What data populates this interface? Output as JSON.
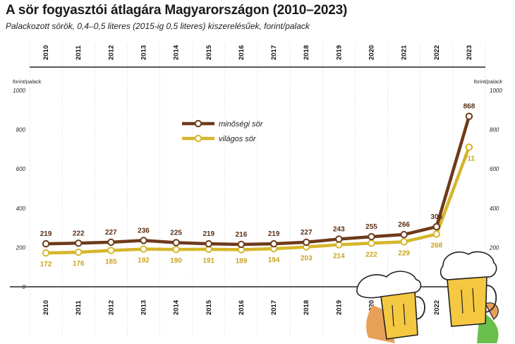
{
  "header": {
    "title": "A sör fogyasztói átlagára Magyarországon (2010–2023)",
    "subtitle": "Palackozott sörök, 0,4–0,5 literes (2015-ig 0,5 literes) kiszerelésűek, forint/palack"
  },
  "colors": {
    "premium": "#6e3a1b",
    "light": "#d6b62c",
    "axis": "#222222"
  },
  "chart_data": {
    "type": "line",
    "title": "A sör fogyasztói átlagára Magyarországon (2010–2023)",
    "subtitle": "Palackozott sörök, 0,4–0,5 literes (2015-ig 0,5 literes) kiszerelésűek, forint/palack",
    "ylabel": "forint/palack",
    "ylim": [
      0,
      1000
    ],
    "yticks": [
      0,
      200,
      400,
      600,
      800,
      1000
    ],
    "x": [
      "2010",
      "2011",
      "2012",
      "2013",
      "2014",
      "2015",
      "2016",
      "2017",
      "2018",
      "2019",
      "2020",
      "2021",
      "2022",
      "2023"
    ],
    "series": [
      {
        "name": "minőségi sör",
        "values": [
          219,
          222,
          227,
          236,
          225,
          219,
          216,
          219,
          227,
          243,
          255,
          266,
          306,
          868
        ]
      },
      {
        "name": "világos sör",
        "values": [
          172,
          176,
          185,
          192,
          190,
          191,
          189,
          194,
          203,
          214,
          222,
          229,
          268,
          711
        ]
      }
    ],
    "legend": "center",
    "grid": false
  }
}
